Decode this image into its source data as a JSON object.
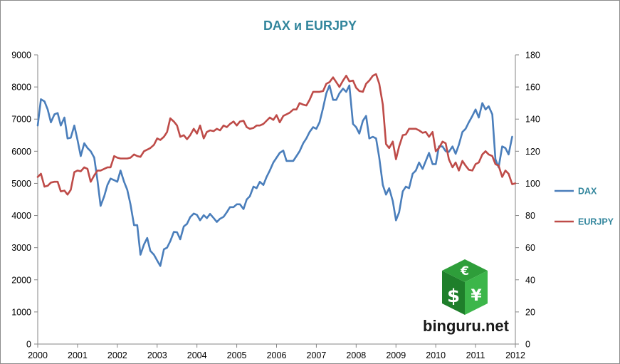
{
  "chart_data": {
    "type": "line",
    "title": "DAX и EURJPY",
    "x_ticks": [
      "2000",
      "2001",
      "2002",
      "2003",
      "2004",
      "2005",
      "2006",
      "2007",
      "2008",
      "2009",
      "2010",
      "2011",
      "2012"
    ],
    "xlim": [
      2000,
      2012
    ],
    "y_left": {
      "ticks": [
        "0",
        "1000",
        "2000",
        "3000",
        "4000",
        "5000",
        "6000",
        "7000",
        "8000",
        "9000"
      ],
      "ylim": [
        0,
        9000
      ]
    },
    "y_right": {
      "ticks": [
        "0",
        "20",
        "40",
        "60",
        "80",
        "100",
        "120",
        "140",
        "160",
        "180"
      ],
      "ylim": [
        0,
        180
      ]
    },
    "grid": false,
    "legend_position": "right",
    "series": [
      {
        "name": "DAX",
        "axis": "left",
        "color": "#4a7ebb",
        "points": [
          [
            2000.0,
            6800
          ],
          [
            2000.08,
            7620
          ],
          [
            2000.17,
            7550
          ],
          [
            2000.25,
            7300
          ],
          [
            2000.33,
            6900
          ],
          [
            2000.42,
            7150
          ],
          [
            2000.5,
            7190
          ],
          [
            2000.58,
            6800
          ],
          [
            2000.67,
            7050
          ],
          [
            2000.75,
            6400
          ],
          [
            2000.83,
            6420
          ],
          [
            2000.92,
            6800
          ],
          [
            2001.0,
            6350
          ],
          [
            2001.08,
            5850
          ],
          [
            2001.17,
            6250
          ],
          [
            2001.25,
            6100
          ],
          [
            2001.33,
            6000
          ],
          [
            2001.42,
            5800
          ],
          [
            2001.5,
            5100
          ],
          [
            2001.58,
            4300
          ],
          [
            2001.67,
            4600
          ],
          [
            2001.75,
            4950
          ],
          [
            2001.83,
            5150
          ],
          [
            2001.92,
            5100
          ],
          [
            2002.0,
            5050
          ],
          [
            2002.08,
            5400
          ],
          [
            2002.17,
            5050
          ],
          [
            2002.25,
            4800
          ],
          [
            2002.33,
            4350
          ],
          [
            2002.42,
            3700
          ],
          [
            2002.5,
            3700
          ],
          [
            2002.58,
            2780
          ],
          [
            2002.67,
            3100
          ],
          [
            2002.75,
            3300
          ],
          [
            2002.83,
            2900
          ],
          [
            2002.92,
            2780
          ],
          [
            2003.0,
            2600
          ],
          [
            2003.08,
            2430
          ],
          [
            2003.17,
            2950
          ],
          [
            2003.25,
            3000
          ],
          [
            2003.33,
            3200
          ],
          [
            2003.42,
            3490
          ],
          [
            2003.5,
            3480
          ],
          [
            2003.58,
            3260
          ],
          [
            2003.67,
            3660
          ],
          [
            2003.75,
            3740
          ],
          [
            2003.83,
            3950
          ],
          [
            2003.92,
            4060
          ],
          [
            2004.0,
            4020
          ],
          [
            2004.08,
            3850
          ],
          [
            2004.17,
            4010
          ],
          [
            2004.25,
            3920
          ],
          [
            2004.33,
            4050
          ],
          [
            2004.42,
            3920
          ],
          [
            2004.5,
            3800
          ],
          [
            2004.58,
            3900
          ],
          [
            2004.67,
            3960
          ],
          [
            2004.75,
            4100
          ],
          [
            2004.83,
            4260
          ],
          [
            2004.92,
            4260
          ],
          [
            2005.0,
            4350
          ],
          [
            2005.08,
            4350
          ],
          [
            2005.17,
            4200
          ],
          [
            2005.25,
            4500
          ],
          [
            2005.33,
            4600
          ],
          [
            2005.42,
            4900
          ],
          [
            2005.5,
            4850
          ],
          [
            2005.58,
            5050
          ],
          [
            2005.67,
            4950
          ],
          [
            2005.75,
            5200
          ],
          [
            2005.83,
            5400
          ],
          [
            2005.92,
            5650
          ],
          [
            2006.0,
            5800
          ],
          [
            2006.08,
            5950
          ],
          [
            2006.17,
            6020
          ],
          [
            2006.25,
            5700
          ],
          [
            2006.33,
            5700
          ],
          [
            2006.42,
            5700
          ],
          [
            2006.5,
            5850
          ],
          [
            2006.58,
            6000
          ],
          [
            2006.67,
            6250
          ],
          [
            2006.75,
            6400
          ],
          [
            2006.83,
            6600
          ],
          [
            2006.92,
            6750
          ],
          [
            2007.0,
            6700
          ],
          [
            2007.08,
            6900
          ],
          [
            2007.17,
            7350
          ],
          [
            2007.25,
            7800
          ],
          [
            2007.33,
            8050
          ],
          [
            2007.42,
            7600
          ],
          [
            2007.5,
            7600
          ],
          [
            2007.58,
            7800
          ],
          [
            2007.67,
            7950
          ],
          [
            2007.75,
            7850
          ],
          [
            2007.83,
            8050
          ],
          [
            2007.92,
            6850
          ],
          [
            2008.0,
            6750
          ],
          [
            2008.08,
            6550
          ],
          [
            2008.17,
            6950
          ],
          [
            2008.25,
            7100
          ],
          [
            2008.33,
            6400
          ],
          [
            2008.42,
            6450
          ],
          [
            2008.5,
            6400
          ],
          [
            2008.58,
            5800
          ],
          [
            2008.67,
            4950
          ],
          [
            2008.75,
            4650
          ],
          [
            2008.83,
            4850
          ],
          [
            2008.92,
            4450
          ],
          [
            2009.0,
            3850
          ],
          [
            2009.08,
            4100
          ],
          [
            2009.17,
            4750
          ],
          [
            2009.25,
            4900
          ],
          [
            2009.33,
            4850
          ],
          [
            2009.42,
            5300
          ],
          [
            2009.5,
            5400
          ],
          [
            2009.58,
            5650
          ],
          [
            2009.67,
            5450
          ],
          [
            2009.75,
            5700
          ],
          [
            2009.83,
            5950
          ],
          [
            2009.92,
            5600
          ],
          [
            2010.0,
            5600
          ],
          [
            2010.08,
            6150
          ],
          [
            2010.17,
            6150
          ],
          [
            2010.25,
            6000
          ],
          [
            2010.33,
            5980
          ],
          [
            2010.42,
            6150
          ],
          [
            2010.5,
            5920
          ],
          [
            2010.58,
            6200
          ],
          [
            2010.67,
            6600
          ],
          [
            2010.75,
            6700
          ],
          [
            2010.83,
            6900
          ],
          [
            2010.92,
            7100
          ],
          [
            2011.0,
            7300
          ],
          [
            2011.08,
            7050
          ],
          [
            2011.17,
            7500
          ],
          [
            2011.25,
            7300
          ],
          [
            2011.33,
            7400
          ],
          [
            2011.42,
            7150
          ],
          [
            2011.5,
            5750
          ],
          [
            2011.58,
            5500
          ],
          [
            2011.67,
            6150
          ],
          [
            2011.75,
            6100
          ],
          [
            2011.83,
            5900
          ],
          [
            2011.92,
            6450
          ]
        ]
      },
      {
        "name": "EURJPY",
        "axis": "right",
        "color": "#be4b48",
        "points": [
          [
            2000.0,
            104
          ],
          [
            2000.08,
            106
          ],
          [
            2000.17,
            98
          ],
          [
            2000.25,
            98.5
          ],
          [
            2000.33,
            100.5
          ],
          [
            2000.42,
            101
          ],
          [
            2000.5,
            101
          ],
          [
            2000.58,
            95
          ],
          [
            2000.67,
            95.5
          ],
          [
            2000.75,
            93
          ],
          [
            2000.83,
            96
          ],
          [
            2000.92,
            107
          ],
          [
            2001.0,
            108
          ],
          [
            2001.08,
            107.5
          ],
          [
            2001.17,
            110
          ],
          [
            2001.25,
            109
          ],
          [
            2001.33,
            101
          ],
          [
            2001.42,
            105
          ],
          [
            2001.5,
            108
          ],
          [
            2001.58,
            108
          ],
          [
            2001.67,
            109
          ],
          [
            2001.75,
            110
          ],
          [
            2001.83,
            110
          ],
          [
            2001.92,
            117
          ],
          [
            2002.0,
            116
          ],
          [
            2002.08,
            115.5
          ],
          [
            2002.17,
            115.5
          ],
          [
            2002.25,
            115.5
          ],
          [
            2002.33,
            116
          ],
          [
            2002.42,
            118
          ],
          [
            2002.5,
            117
          ],
          [
            2002.58,
            116.5
          ],
          [
            2002.67,
            120
          ],
          [
            2002.75,
            121
          ],
          [
            2002.83,
            122
          ],
          [
            2002.92,
            124
          ],
          [
            2003.0,
            128
          ],
          [
            2003.08,
            127
          ],
          [
            2003.17,
            129
          ],
          [
            2003.25,
            132
          ],
          [
            2003.33,
            140.5
          ],
          [
            2003.42,
            138.5
          ],
          [
            2003.5,
            136
          ],
          [
            2003.58,
            129
          ],
          [
            2003.67,
            130
          ],
          [
            2003.75,
            127.5
          ],
          [
            2003.83,
            130
          ],
          [
            2003.92,
            134
          ],
          [
            2004.0,
            131
          ],
          [
            2004.08,
            136
          ],
          [
            2004.17,
            128
          ],
          [
            2004.25,
            132
          ],
          [
            2004.33,
            133
          ],
          [
            2004.42,
            132.5
          ],
          [
            2004.5,
            134
          ],
          [
            2004.58,
            133
          ],
          [
            2004.67,
            136
          ],
          [
            2004.75,
            135
          ],
          [
            2004.83,
            137
          ],
          [
            2004.92,
            138.5
          ],
          [
            2005.0,
            136
          ],
          [
            2005.08,
            138.5
          ],
          [
            2005.17,
            139
          ],
          [
            2005.25,
            135
          ],
          [
            2005.33,
            134
          ],
          [
            2005.42,
            134.5
          ],
          [
            2005.5,
            136
          ],
          [
            2005.58,
            136
          ],
          [
            2005.67,
            137
          ],
          [
            2005.75,
            139
          ],
          [
            2005.83,
            141
          ],
          [
            2005.92,
            139.5
          ],
          [
            2006.0,
            142.5
          ],
          [
            2006.08,
            138
          ],
          [
            2006.17,
            142
          ],
          [
            2006.25,
            143
          ],
          [
            2006.33,
            144
          ],
          [
            2006.42,
            146
          ],
          [
            2006.5,
            146
          ],
          [
            2006.58,
            150
          ],
          [
            2006.67,
            149
          ],
          [
            2006.75,
            148.5
          ],
          [
            2006.83,
            152
          ],
          [
            2006.92,
            157
          ],
          [
            2007.0,
            157
          ],
          [
            2007.08,
            157
          ],
          [
            2007.17,
            157.5
          ],
          [
            2007.25,
            162
          ],
          [
            2007.33,
            163
          ],
          [
            2007.42,
            166
          ],
          [
            2007.5,
            163
          ],
          [
            2007.58,
            160
          ],
          [
            2007.67,
            164
          ],
          [
            2007.75,
            167
          ],
          [
            2007.83,
            163.5
          ],
          [
            2007.92,
            164
          ],
          [
            2008.0,
            159.5
          ],
          [
            2008.08,
            157.5
          ],
          [
            2008.17,
            157
          ],
          [
            2008.25,
            162
          ],
          [
            2008.33,
            164
          ],
          [
            2008.42,
            167
          ],
          [
            2008.5,
            168
          ],
          [
            2008.58,
            162
          ],
          [
            2008.67,
            149
          ],
          [
            2008.75,
            124.5
          ],
          [
            2008.83,
            122
          ],
          [
            2008.92,
            126
          ],
          [
            2009.0,
            115
          ],
          [
            2009.08,
            123
          ],
          [
            2009.17,
            130
          ],
          [
            2009.25,
            130.5
          ],
          [
            2009.33,
            134
          ],
          [
            2009.42,
            134
          ],
          [
            2009.5,
            134
          ],
          [
            2009.58,
            133
          ],
          [
            2009.67,
            131.5
          ],
          [
            2009.75,
            132
          ],
          [
            2009.83,
            129
          ],
          [
            2009.92,
            132
          ],
          [
            2010.0,
            120
          ],
          [
            2010.08,
            122
          ],
          [
            2010.17,
            126
          ],
          [
            2010.25,
            125
          ],
          [
            2010.33,
            115
          ],
          [
            2010.42,
            110
          ],
          [
            2010.5,
            113
          ],
          [
            2010.58,
            108
          ],
          [
            2010.67,
            114
          ],
          [
            2010.75,
            111
          ],
          [
            2010.83,
            108.5
          ],
          [
            2010.92,
            108
          ],
          [
            2011.0,
            112
          ],
          [
            2011.08,
            113
          ],
          [
            2011.17,
            118
          ],
          [
            2011.25,
            120
          ],
          [
            2011.33,
            118
          ],
          [
            2011.42,
            117
          ],
          [
            2011.5,
            112
          ],
          [
            2011.58,
            111
          ],
          [
            2011.67,
            104
          ],
          [
            2011.75,
            108
          ],
          [
            2011.83,
            106
          ],
          [
            2011.92,
            99.5
          ],
          [
            2012.0,
            100
          ]
        ]
      }
    ]
  },
  "branding": {
    "site": "binguru.net",
    "logo_symbols": [
      "€",
      "$",
      "¥"
    ],
    "logo_colors": {
      "top": "#2e9e3a",
      "left": "#1f7f2b",
      "right": "#3cb64a"
    }
  }
}
